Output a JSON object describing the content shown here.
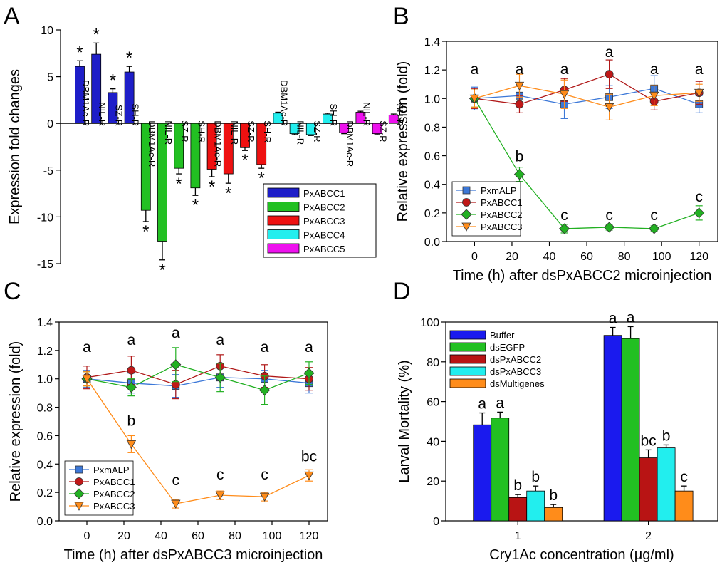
{
  "panels": {
    "A": "A",
    "B": "B",
    "C": "C",
    "D": "D"
  },
  "colors": {
    "PxABCC1": "#1e1ec8",
    "PxABCC2": "#22c022",
    "PxABCC3": "#ee1111",
    "PxABCC4": "#22eeee",
    "PxABCC5": "#ee11ee",
    "PxmALP": "#3c78d8",
    "PxABCC1_line": "#b01818",
    "PxABCC2_line": "#22b022",
    "PxABCC3_line": "#ff8c1a",
    "Buffer": "#1a1aee",
    "dsEGFP": "#22c022",
    "dsPxABCC2": "#b81414",
    "dsPxABCC3": "#22eeee",
    "dsMultigenes": "#ff8c1a"
  },
  "chart_data": [
    {
      "type": "bar",
      "panel": "A",
      "ylabel": "Expression fold changes",
      "ylim": [
        -15,
        10
      ],
      "yticks": [
        "10",
        "5",
        "0",
        "-5",
        "-10",
        "-15"
      ],
      "strain_labels": [
        "DBM1Ac-R",
        "NIL-R",
        "SZ-R",
        "SH-R"
      ],
      "series": [
        {
          "name": "PxABCC1",
          "values": [
            6.1,
            7.4,
            3.3,
            5.5
          ],
          "errors": [
            0.6,
            1.2,
            0.4,
            0.6
          ],
          "stars": [
            "*",
            "*",
            "*",
            "*"
          ]
        },
        {
          "name": "PxABCC2",
          "values": [
            -9.3,
            -12.6,
            -4.8,
            -6.9
          ],
          "errors": [
            1.2,
            2.0,
            0.6,
            0.8
          ],
          "stars": [
            "*",
            "*",
            "*",
            "*"
          ]
        },
        {
          "name": "PxABCC3",
          "values": [
            -4.9,
            -5.4,
            -2.6,
            -4.4
          ],
          "errors": [
            0.8,
            1.0,
            0.3,
            0.4
          ],
          "stars": [
            "*",
            "*",
            "*",
            "*"
          ]
        },
        {
          "name": "PxABCC4",
          "values": [
            1.1,
            -1.1,
            -1.2,
            1.0
          ],
          "errors": [
            0.1,
            0.1,
            0.1,
            0.1
          ],
          "stars": [
            "",
            "",
            "",
            ""
          ]
        },
        {
          "name": "PxABCC5",
          "values": [
            -1.0,
            1.2,
            -1.1,
            0.9
          ],
          "errors": [
            0.1,
            0.1,
            0.1,
            0.1
          ],
          "stars": [
            "",
            "",
            "",
            ""
          ]
        }
      ],
      "legend": [
        "PxABCC1",
        "PxABCC2",
        "PxABCC3",
        "PxABCC4",
        "PxABCC5"
      ]
    },
    {
      "type": "line",
      "panel": "B",
      "xlabel": "Time (h) after dsPxABCC2 microinjection",
      "ylabel": "Relative expression (fold)",
      "x": [
        0,
        24,
        48,
        72,
        96,
        120
      ],
      "xlim": [
        -15,
        130
      ],
      "ylim": [
        0,
        1.4
      ],
      "xticks": [
        "0",
        "20",
        "40",
        "60",
        "80",
        "100",
        "120"
      ],
      "yticks": [
        "0.0",
        "0.2",
        "0.4",
        "0.6",
        "0.8",
        "1.0",
        "1.2",
        "1.4"
      ],
      "series": [
        {
          "name": "PxmALP",
          "values": [
            1.0,
            1.02,
            0.96,
            1.01,
            1.07,
            0.96
          ],
          "errors": [
            0.08,
            0.07,
            0.1,
            0.08,
            0.09,
            0.06
          ]
        },
        {
          "name": "PxABCC1",
          "values": [
            1.0,
            0.96,
            1.06,
            1.17,
            0.98,
            1.04
          ],
          "errors": [
            0.07,
            0.06,
            0.08,
            0.1,
            0.06,
            0.08
          ]
        },
        {
          "name": "PxABCC2",
          "values": [
            1.0,
            0.47,
            0.09,
            0.1,
            0.09,
            0.2
          ],
          "errors": [
            0.06,
            0.05,
            0.03,
            0.02,
            0.02,
            0.05
          ]
        },
        {
          "name": "PxABCC3",
          "values": [
            1.0,
            1.09,
            1.03,
            0.94,
            1.02,
            1.04
          ],
          "errors": [
            0.06,
            0.08,
            0.1,
            0.09,
            0.07,
            0.06
          ]
        }
      ],
      "annotations": [
        {
          "x": 0,
          "y": 1.17,
          "text": "a"
        },
        {
          "x": 24,
          "y": 1.17,
          "text": "a"
        },
        {
          "x": 48,
          "y": 1.17,
          "text": "a"
        },
        {
          "x": 72,
          "y": 1.29,
          "text": "a"
        },
        {
          "x": 96,
          "y": 1.17,
          "text": "a"
        },
        {
          "x": 120,
          "y": 1.17,
          "text": "a"
        },
        {
          "x": 24,
          "y": 0.56,
          "text": "b"
        },
        {
          "x": 48,
          "y": 0.15,
          "text": "c"
        },
        {
          "x": 72,
          "y": 0.15,
          "text": "c"
        },
        {
          "x": 96,
          "y": 0.15,
          "text": "c"
        },
        {
          "x": 120,
          "y": 0.28,
          "text": "c"
        }
      ],
      "legend": [
        "PxmALP",
        "PxABCC1",
        "PxABCC2",
        "PxABCC3"
      ],
      "legend_position": "lower-left"
    },
    {
      "type": "line",
      "panel": "C",
      "xlabel": "Time (h) after dsPxABCC3 microinjection",
      "ylabel": "Relative expression (fold)",
      "x": [
        0,
        24,
        48,
        72,
        96,
        120
      ],
      "xlim": [
        -15,
        130
      ],
      "ylim": [
        0,
        1.4
      ],
      "xticks": [
        "0",
        "20",
        "40",
        "60",
        "80",
        "100",
        "120"
      ],
      "yticks": [
        "0.0",
        "0.2",
        "0.4",
        "0.6",
        "0.8",
        "1.0",
        "1.2",
        "1.4"
      ],
      "series": [
        {
          "name": "PxmALP",
          "values": [
            1.0,
            0.97,
            0.95,
            1.01,
            1.0,
            0.97
          ],
          "errors": [
            0.06,
            0.07,
            0.08,
            0.07,
            0.06,
            0.07
          ]
        },
        {
          "name": "PxABCC1",
          "values": [
            1.01,
            1.06,
            0.96,
            1.09,
            1.02,
            1.0
          ],
          "errors": [
            0.08,
            0.1,
            0.1,
            0.08,
            0.08,
            0.08
          ]
        },
        {
          "name": "PxABCC2",
          "values": [
            1.0,
            0.94,
            1.1,
            1.01,
            0.92,
            1.04
          ],
          "errors": [
            0.05,
            0.06,
            0.12,
            0.1,
            0.1,
            0.08
          ]
        },
        {
          "name": "PxABCC3",
          "values": [
            1.0,
            0.54,
            0.12,
            0.18,
            0.17,
            0.32
          ],
          "errors": [
            0.05,
            0.06,
            0.03,
            0.03,
            0.03,
            0.04
          ]
        }
      ],
      "annotations": [
        {
          "x": 0,
          "y": 1.19,
          "text": "a"
        },
        {
          "x": 24,
          "y": 1.24,
          "text": "a"
        },
        {
          "x": 48,
          "y": 1.29,
          "text": "a"
        },
        {
          "x": 72,
          "y": 1.24,
          "text": "a"
        },
        {
          "x": 96,
          "y": 1.19,
          "text": "a"
        },
        {
          "x": 120,
          "y": 1.19,
          "text": "a"
        },
        {
          "x": 24,
          "y": 0.67,
          "text": "b"
        },
        {
          "x": 48,
          "y": 0.25,
          "text": "c"
        },
        {
          "x": 72,
          "y": 0.29,
          "text": "c"
        },
        {
          "x": 96,
          "y": 0.29,
          "text": "c"
        },
        {
          "x": 120,
          "y": 0.42,
          "text": "bc"
        }
      ],
      "legend": [
        "PxmALP",
        "PxABCC1",
        "PxABCC2",
        "PxABCC3"
      ],
      "legend_position": "lower-left"
    },
    {
      "type": "bar",
      "panel": "D",
      "xlabel": "Cry1Ac concentration (μg/ml)",
      "ylabel": "Larval Mortality (%)",
      "categories": [
        "1",
        "2"
      ],
      "ylim": [
        0,
        100
      ],
      "yticks": [
        "0",
        "20",
        "40",
        "60",
        "80",
        "100"
      ],
      "series": [
        {
          "name": "Buffer",
          "values": [
            48.3,
            93.3
          ],
          "errors": [
            6.0,
            4.0
          ],
          "letters": [
            "a",
            "a"
          ]
        },
        {
          "name": "dsEGFP",
          "values": [
            51.7,
            91.7
          ],
          "errors": [
            3.0,
            6.0
          ],
          "letters": [
            "a",
            "a"
          ]
        },
        {
          "name": "dsPxABCC2",
          "values": [
            11.7,
            31.7
          ],
          "errors": [
            1.5,
            4.0
          ],
          "letters": [
            "b",
            "bc"
          ]
        },
        {
          "name": "dsPxABCC3",
          "values": [
            15.0,
            36.7
          ],
          "errors": [
            2.5,
            1.5
          ],
          "letters": [
            "b",
            "b"
          ]
        },
        {
          "name": "dsMultigenes",
          "values": [
            6.7,
            15.0
          ],
          "errors": [
            1.5,
            2.5
          ],
          "letters": [
            "b",
            "c"
          ]
        }
      ],
      "legend": [
        "Buffer",
        "dsEGFP",
        "dsPxABCC2",
        "dsPxABCC3",
        "dsMultigenes"
      ],
      "legend_position": "top-left"
    }
  ]
}
